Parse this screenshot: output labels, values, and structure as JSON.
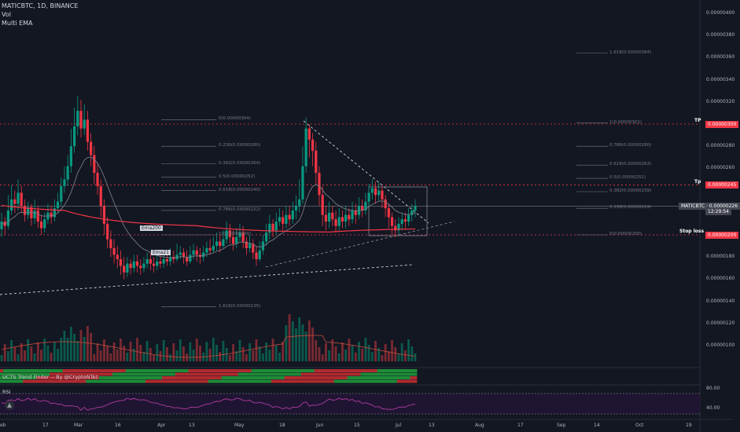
{
  "header": {
    "symbol_line": "MATICBTC, 1D, BINANCE",
    "vol_label": "Vol",
    "ema_label": "Multi EMA"
  },
  "price_axis": {
    "ticks": [
      {
        "label": "0.00000400",
        "v": 400
      },
      {
        "label": "0.00000380",
        "v": 380
      },
      {
        "label": "0.00000360",
        "v": 360
      },
      {
        "label": "0.00000340",
        "v": 340
      },
      {
        "label": "0.00000320",
        "v": 320
      },
      {
        "label": "0.00000280",
        "v": 280
      },
      {
        "label": "0.00000260",
        "v": 260
      },
      {
        "label": "0.00000180",
        "v": 180
      },
      {
        "label": "0.00000160",
        "v": 160
      },
      {
        "label": "0.00000140",
        "v": 140
      },
      {
        "label": "0.00000120",
        "v": 120
      },
      {
        "label": "0.00000100",
        "v": 100
      }
    ]
  },
  "price_tags": [
    {
      "label": "0.00000300",
      "v": 300,
      "style": "red"
    },
    {
      "label": "0.00000245",
      "v": 245,
      "style": "red"
    },
    {
      "label": "MATICBTC · 0.00000226",
      "v": 226,
      "style": "gray"
    },
    {
      "label": "12:29:54",
      "v": 221,
      "style": "gray"
    },
    {
      "label": "0.00000200",
      "v": 200,
      "style": "red"
    }
  ],
  "side_labels": [
    {
      "label": "TP",
      "v": 300
    },
    {
      "label": "Tp",
      "v": 245
    },
    {
      "label": "Stop loss",
      "v": 200
    }
  ],
  "time_axis": [
    "eb",
    "17",
    "Mar",
    "16",
    "Apr",
    "13",
    "May",
    "18",
    "Jun",
    "15",
    "Jul",
    "13",
    "Aug",
    "17",
    "Sep",
    "14",
    "Oct",
    "19"
  ],
  "fib_left": [
    "0(0.00000304)",
    "0.236(0.00000280)",
    "0.382(0.00000264)",
    "0.5(0.00000252)",
    "0.618(0.00000240)",
    "0.786(0.00000222)",
    "1(0.00000200)",
    "1.618(0.00000135)"
  ],
  "fib_right": [
    "1.618(0.00000364)",
    "1(0.00000301)",
    "0.786(0.00000280)",
    "0.618(0.00000263)",
    "0.5(0.00000251)",
    "0.382(0.00000239)",
    "0.236(0.00000224)",
    "0(0.00000200)"
  ],
  "ema_labels": {
    "ema200": "Ema200",
    "ema21": "Ema21"
  },
  "indicators": {
    "trend_finder": "UCTS Trend Finder -- By @CryptoNTez",
    "rsi_label": "RSI",
    "rsi_ticks": [
      "80.00",
      "40.00"
    ]
  },
  "colors": {
    "up": "#089981",
    "down": "#f23645",
    "bg": "#131722",
    "ema200": "#f23645",
    "ema21": "#787b86",
    "rsi": "#b03a9c"
  }
}
